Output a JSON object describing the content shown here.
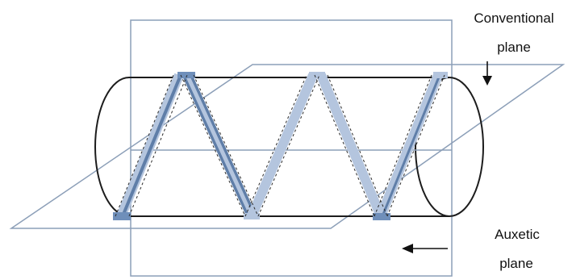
{
  "labels": {
    "conventional_line1": "Conventional",
    "conventional_line2": "plane",
    "auxetic_line1": "Auxetic",
    "auxetic_line2": "plane"
  },
  "colors": {
    "plane_outline": "#8c9fb8",
    "cylinder_outline": "#1c1c1c",
    "strip_light": "#b4c5de",
    "strip_dark": "#5f7ea8",
    "strip_end": "#6f8fba",
    "dashed_guides": "#2a2a2a",
    "arrow": "#111111"
  }
}
